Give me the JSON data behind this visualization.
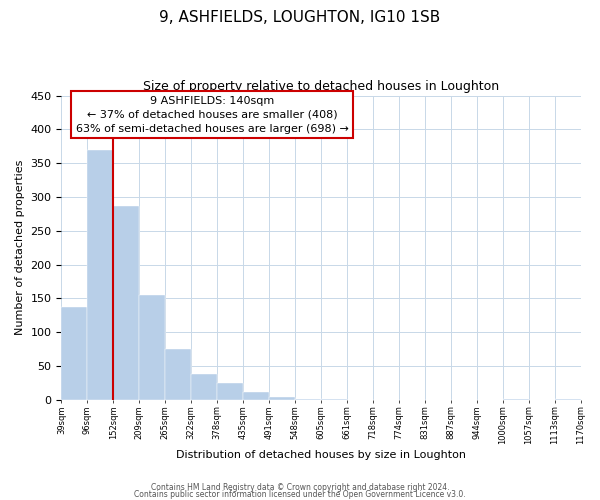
{
  "title": "9, ASHFIELDS, LOUGHTON, IG10 1SB",
  "subtitle": "Size of property relative to detached houses in Loughton",
  "xlabel": "Distribution of detached houses by size in Loughton",
  "ylabel": "Number of detached properties",
  "bar_values": [
    138,
    370,
    287,
    155,
    75,
    38,
    25,
    11,
    5,
    2,
    1,
    0,
    0,
    0,
    0,
    0,
    0,
    1,
    0,
    1
  ],
  "bin_labels": [
    "39sqm",
    "96sqm",
    "152sqm",
    "209sqm",
    "265sqm",
    "322sqm",
    "378sqm",
    "435sqm",
    "491sqm",
    "548sqm",
    "605sqm",
    "661sqm",
    "718sqm",
    "774sqm",
    "831sqm",
    "887sqm",
    "944sqm",
    "1000sqm",
    "1057sqm",
    "1113sqm",
    "1170sqm"
  ],
  "bar_color": "#b8cfe8",
  "marker_line_color": "#cc0000",
  "ylim": [
    0,
    450
  ],
  "yticks": [
    0,
    50,
    100,
    150,
    200,
    250,
    300,
    350,
    400,
    450
  ],
  "annotation_title": "9 ASHFIELDS: 140sqm",
  "annotation_line1": "← 37% of detached houses are smaller (408)",
  "annotation_line2": "63% of semi-detached houses are larger (698) →",
  "footer_line1": "Contains HM Land Registry data © Crown copyright and database right 2024.",
  "footer_line2": "Contains public sector information licensed under the Open Government Licence v3.0.",
  "bg_color": "#ffffff",
  "grid_color": "#c8d8e8"
}
